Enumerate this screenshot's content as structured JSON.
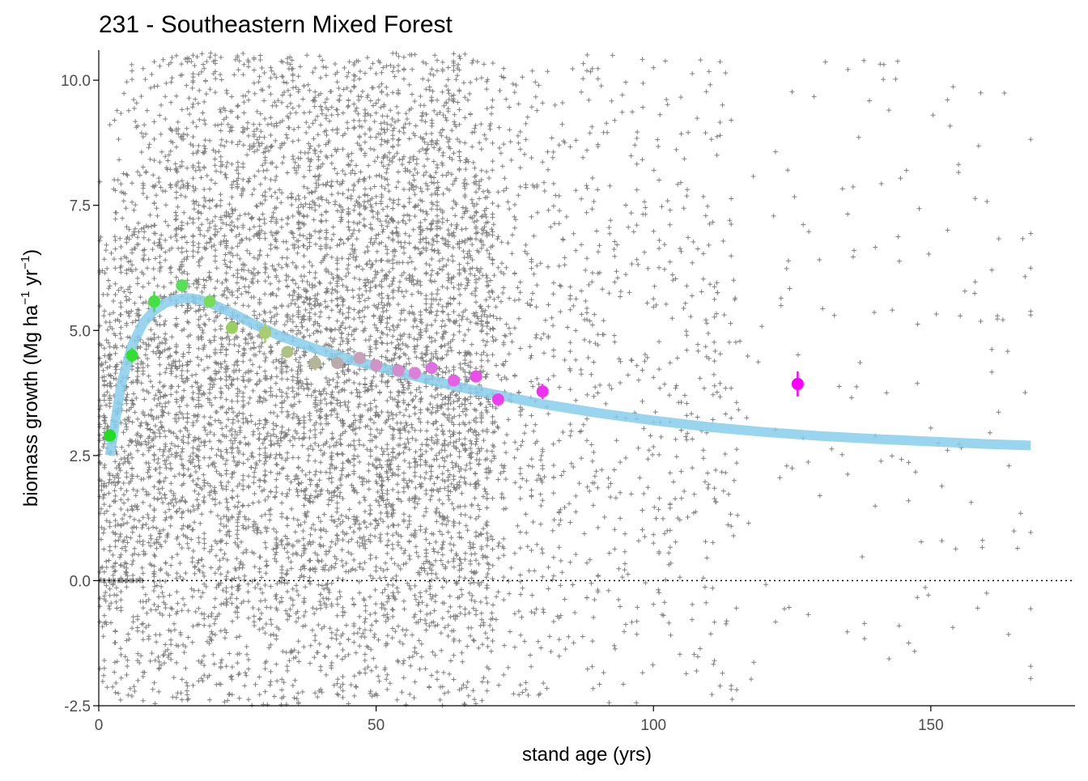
{
  "chart_data": {
    "type": "scatter",
    "title": "231 - Southeastern Mixed Forest",
    "xlabel": "stand age (yrs)",
    "ylabel_main": "biomass growth (Mg ha",
    "ylabel_sup1": "−1",
    "ylabel_mid": " yr",
    "ylabel_sup2": "−1",
    "ylabel_end": ")",
    "xlim": [
      0,
      176
    ],
    "ylim": [
      -2.5,
      10.6
    ],
    "x_ticks": [
      0,
      50,
      100,
      150
    ],
    "x_tick_labels": [
      "0",
      "50",
      "100",
      "150"
    ],
    "y_ticks": [
      -2.5,
      0,
      2.5,
      5,
      7.5,
      10
    ],
    "y_tick_labels": [
      "-2.5",
      "0.0",
      "2.5",
      "5.0",
      "7.5",
      "10.0"
    ],
    "grid": false,
    "reference_line": {
      "y": 0,
      "style": "dotted",
      "color": "#000000"
    },
    "raw_points": {
      "marker": "+",
      "color": "#000000",
      "opacity": 0.5,
      "approx_count": 9000
    },
    "fit_curve": {
      "color": "#87CEEB",
      "x": [
        2,
        4,
        6,
        8,
        10,
        12,
        14,
        16,
        18,
        20,
        24,
        28,
        32,
        36,
        40,
        45,
        50,
        55,
        60,
        65,
        70,
        75,
        80,
        90,
        100,
        110,
        120,
        130,
        140,
        150,
        160,
        168
      ],
      "y": [
        2.5,
        3.9,
        4.7,
        5.15,
        5.4,
        5.55,
        5.62,
        5.65,
        5.62,
        5.55,
        5.35,
        5.12,
        4.92,
        4.75,
        4.6,
        4.43,
        4.28,
        4.14,
        4.0,
        3.87,
        3.75,
        3.64,
        3.53,
        3.35,
        3.2,
        3.07,
        2.97,
        2.89,
        2.83,
        2.78,
        2.73,
        2.7
      ]
    },
    "binned_means": [
      {
        "x": 2,
        "y": 2.9,
        "err": 0.12,
        "color": "#22DD22"
      },
      {
        "x": 6,
        "y": 4.5,
        "err": 0.15,
        "color": "#33DD33"
      },
      {
        "x": 10,
        "y": 5.58,
        "err": 0.2,
        "color": "#44E044"
      },
      {
        "x": 15,
        "y": 5.9,
        "err": 0.12,
        "color": "#55E055"
      },
      {
        "x": 20,
        "y": 5.58,
        "err": 0.12,
        "color": "#77DD55"
      },
      {
        "x": 24,
        "y": 5.05,
        "err": 0.1,
        "color": "#99D060"
      },
      {
        "x": 30,
        "y": 4.95,
        "err": 0.2,
        "color": "#A8CC70"
      },
      {
        "x": 34,
        "y": 4.57,
        "err": 0.1,
        "color": "#AFC285"
      },
      {
        "x": 39,
        "y": 4.35,
        "err": 0.15,
        "color": "#B5B59A"
      },
      {
        "x": 43,
        "y": 4.35,
        "err": 0.1,
        "color": "#BBAAAA"
      },
      {
        "x": 47,
        "y": 4.45,
        "err": 0.1,
        "color": "#C8A0B8"
      },
      {
        "x": 50,
        "y": 4.3,
        "err": 0.1,
        "color": "#CF95C5"
      },
      {
        "x": 54,
        "y": 4.2,
        "err": 0.1,
        "color": "#D88AD0"
      },
      {
        "x": 57,
        "y": 4.15,
        "err": 0.1,
        "color": "#DD80D8"
      },
      {
        "x": 60,
        "y": 4.25,
        "err": 0.12,
        "color": "#E070E0"
      },
      {
        "x": 64,
        "y": 4.0,
        "err": 0.1,
        "color": "#E560E5"
      },
      {
        "x": 68,
        "y": 4.08,
        "err": 0.12,
        "color": "#E850E8"
      },
      {
        "x": 72,
        "y": 3.62,
        "err": 0.1,
        "color": "#EC40EC"
      },
      {
        "x": 80,
        "y": 3.78,
        "err": 0.15,
        "color": "#F030F0"
      },
      {
        "x": 126,
        "y": 3.93,
        "err": 0.25,
        "color": "#FF00FF"
      }
    ]
  }
}
